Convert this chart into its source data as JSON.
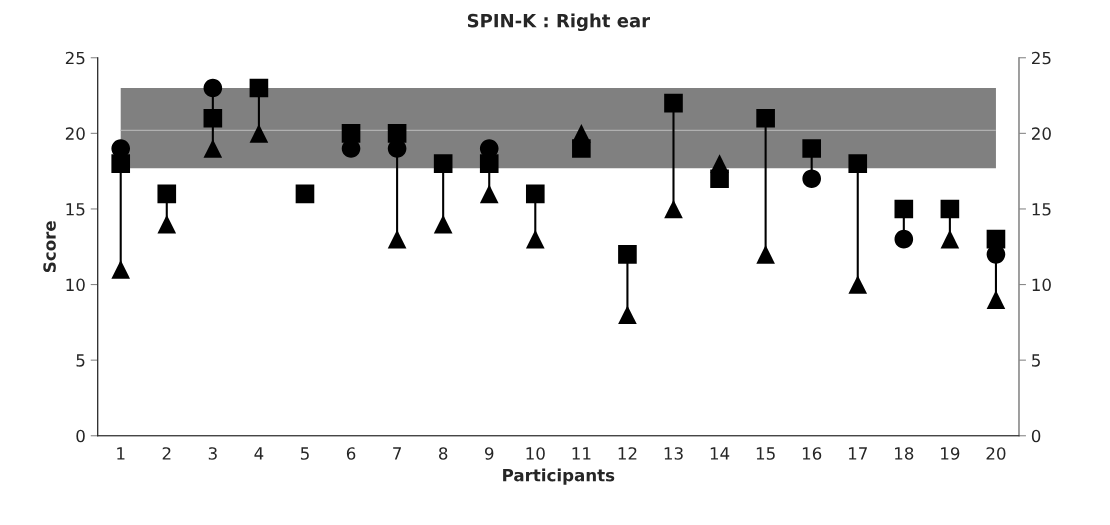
{
  "chart_data": {
    "type": "scatter",
    "title": "SPIN-K : Right ear",
    "xlabel": "Participants",
    "ylabel": "Score",
    "categories": [
      "1",
      "2",
      "3",
      "4",
      "5",
      "6",
      "7",
      "8",
      "9",
      "10",
      "11",
      "12",
      "13",
      "14",
      "15",
      "16",
      "17",
      "18",
      "19",
      "20"
    ],
    "series": [
      {
        "color": "#000000",
        "marker": "circle",
        "values": [
          19,
          null,
          23,
          null,
          null,
          19,
          19,
          null,
          19,
          null,
          null,
          null,
          null,
          null,
          null,
          17,
          null,
          13,
          null,
          12
        ]
      },
      {
        "color": "#000000",
        "marker": "square",
        "values": [
          18,
          16,
          21,
          23,
          16,
          20,
          20,
          18,
          18,
          16,
          19,
          12,
          22,
          17,
          21,
          19,
          18,
          15,
          15,
          13
        ]
      },
      {
        "color": "#000000",
        "marker": "triangle",
        "values": [
          11,
          14,
          19,
          20,
          null,
          null,
          13,
          14,
          16,
          13,
          20,
          8,
          15,
          18,
          12,
          null,
          10,
          null,
          13,
          9
        ]
      }
    ],
    "ylim": [
      0,
      25
    ],
    "yticks": [
      0,
      5,
      10,
      15,
      20,
      25
    ],
    "y2lim": [
      0,
      25
    ],
    "y2ticks": [
      0,
      5,
      10,
      15,
      20,
      25
    ],
    "bands": [
      {
        "axis": "y",
        "from": 17.7,
        "to": 23,
        "color": "#808080"
      }
    ],
    "ref_lines": [
      {
        "axis": "y",
        "value": 20.2,
        "color": "#b0b0b0",
        "line_style": "solid"
      }
    ],
    "grid": false,
    "legend": false
  }
}
